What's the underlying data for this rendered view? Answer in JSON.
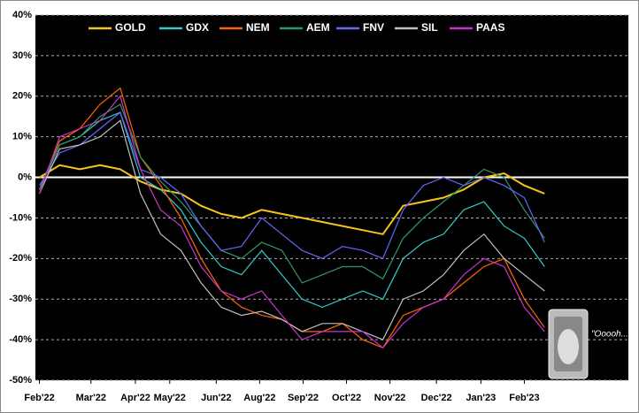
{
  "chart_data": {
    "type": "line",
    "annotation": "\"Ooooh...\"",
    "x": [
      0,
      2,
      4,
      6,
      8,
      10,
      12,
      14,
      16,
      18,
      20,
      22,
      24,
      26,
      28,
      30,
      32,
      34,
      36,
      38,
      40,
      42,
      44,
      46,
      48,
      50
    ],
    "xlim": [
      -0.4,
      58.3
    ],
    "xticks": [
      {
        "value": 0,
        "label": "Feb'22"
      },
      {
        "value": 5.1,
        "label": "Mar'22"
      },
      {
        "value": 9.5,
        "label": "Apr'22"
      },
      {
        "value": 12.9,
        "label": "May'22"
      },
      {
        "value": 17.5,
        "label": "Jun'22"
      },
      {
        "value": 21.8,
        "label": "Aug'22"
      },
      {
        "value": 26.1,
        "label": "Sep'22"
      },
      {
        "value": 30.4,
        "label": "Oct'22"
      },
      {
        "value": 34.7,
        "label": "Nov'22"
      },
      {
        "value": 39.3,
        "label": "Dec'22"
      },
      {
        "value": 43.7,
        "label": "Jan'23"
      },
      {
        "value": 48,
        "label": "Feb'23"
      }
    ],
    "ylim": [
      -50,
      40
    ],
    "yticks": [
      {
        "value": -50,
        "label": "-50%"
      },
      {
        "value": -40,
        "label": "-40%"
      },
      {
        "value": -30,
        "label": "-30%"
      },
      {
        "value": -20,
        "label": "-20%"
      },
      {
        "value": -10,
        "label": "-10%"
      },
      {
        "value": 0,
        "label": "0%"
      },
      {
        "value": 10,
        "label": "10%"
      },
      {
        "value": 20,
        "label": "20%"
      },
      {
        "value": 30,
        "label": "30%"
      },
      {
        "value": 40,
        "label": "40%"
      }
    ],
    "grid": true,
    "series": [
      {
        "name": "GOLD",
        "color": "#f5c518",
        "values": [
          0,
          3,
          2,
          3,
          2,
          -1,
          -3,
          -4,
          -7,
          -9,
          -10,
          -8,
          -9,
          -10,
          -11,
          -12,
          -13,
          -14,
          -7,
          -6,
          -5,
          -3,
          0,
          1,
          -2,
          -4
        ]
      },
      {
        "name": "GDX",
        "color": "#33cccc",
        "values": [
          -3,
          8,
          10,
          14,
          16,
          0,
          -3,
          -8,
          -16,
          -22,
          -24,
          -18,
          -24,
          -30,
          -32,
          -30,
          -28,
          -30,
          -20,
          -16,
          -14,
          -8,
          -6,
          -12,
          -15,
          -22
        ]
      },
      {
        "name": "NEM",
        "color": "#ff6600",
        "values": [
          -3,
          9,
          12,
          18,
          22,
          5,
          -2,
          -10,
          -20,
          -28,
          -32,
          -34,
          -35,
          -38,
          -38,
          -36,
          -40,
          -42,
          -34,
          -32,
          -30,
          -26,
          -22,
          -20,
          -30,
          -37
        ]
      },
      {
        "name": "AEM",
        "color": "#339966",
        "values": [
          -3,
          8,
          10,
          15,
          18,
          5,
          -1,
          -6,
          -12,
          -18,
          -20,
          -16,
          -18,
          -26,
          -24,
          -22,
          -22,
          -25,
          -15,
          -10,
          -6,
          -2,
          2,
          0,
          -8,
          -15
        ]
      },
      {
        "name": "FNV",
        "color": "#6666ff",
        "values": [
          -2,
          6,
          8,
          12,
          16,
          2,
          0,
          -4,
          -12,
          -18,
          -17,
          -10,
          -14,
          -18,
          -20,
          -17,
          -18,
          -20,
          -8,
          -2,
          0,
          -2,
          0,
          -2,
          -5,
          -16
        ]
      },
      {
        "name": "SIL",
        "color": "#c0c0c0",
        "values": [
          -4,
          7,
          8,
          10,
          14,
          -4,
          -14,
          -18,
          -26,
          -32,
          -34,
          -33,
          -35,
          -38,
          -36,
          -36,
          -38,
          -40,
          -30,
          -28,
          -24,
          -18,
          -14,
          -20,
          -24,
          -28
        ]
      },
      {
        "name": "PAAS",
        "color": "#cc33cc",
        "values": [
          -4,
          10,
          12,
          14,
          20,
          2,
          -8,
          -12,
          -22,
          -28,
          -30,
          -28,
          -34,
          -40,
          -38,
          -38,
          -38,
          -42,
          -36,
          -32,
          -30,
          -24,
          -20,
          -22,
          -32,
          -38
        ]
      }
    ]
  }
}
